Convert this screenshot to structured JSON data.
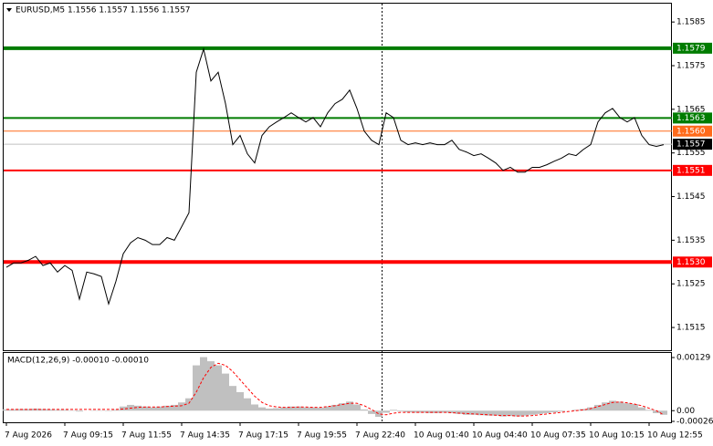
{
  "chart_data": [
    {
      "type": "line",
      "title": "EURUSD,M5  1.1556 1.1557 1.1556 1.1557",
      "color": "#000000",
      "categories": [
        "7 Aug 2026",
        null,
        null,
        null,
        null,
        null,
        null,
        null,
        "7 Aug 09:15",
        null,
        null,
        null,
        null,
        null,
        null,
        null,
        "7 Aug 11:55",
        null,
        null,
        null,
        null,
        null,
        null,
        null,
        "7 Aug 14:35",
        null,
        null,
        null,
        null,
        null,
        null,
        null,
        "7 Aug 17:15",
        null,
        null,
        null,
        null,
        null,
        null,
        null,
        "7 Aug 19:55",
        null,
        null,
        null,
        null,
        null,
        null,
        null,
        "7 Aug 22:40",
        null,
        null,
        null,
        null,
        null,
        null,
        null,
        "10 Aug 01:40",
        null,
        null,
        null,
        null,
        null,
        null,
        null,
        "10 Aug 04:40",
        null,
        null,
        null,
        null,
        null,
        null,
        null,
        "10 Aug 07:35",
        null,
        null,
        null,
        null,
        null,
        null,
        null,
        "10 Aug 10:15",
        null,
        null,
        null,
        null,
        null,
        null,
        null,
        "10 Aug 12:55",
        null,
        null
      ],
      "values": [
        1.15288,
        1.15298,
        1.15298,
        1.15304,
        1.15313,
        1.15292,
        1.15298,
        1.15277,
        1.15292,
        1.15281,
        1.15215,
        1.15277,
        1.15273,
        1.15267,
        1.15204,
        1.15256,
        1.15319,
        1.15344,
        1.15356,
        1.1535,
        1.1534,
        1.1534,
        1.15356,
        1.1535,
        1.15381,
        1.15413,
        1.15735,
        1.15788,
        1.15715,
        1.15735,
        1.15663,
        1.15569,
        1.1559,
        1.15548,
        1.15527,
        1.1559,
        1.1561,
        1.15621,
        1.15631,
        1.15642,
        1.15631,
        1.15621,
        1.15631,
        1.1561,
        1.15642,
        1.15663,
        1.15673,
        1.15694,
        1.15652,
        1.156,
        1.15579,
        1.15569,
        1.15642,
        1.15631,
        1.15579,
        1.15569,
        1.15573,
        1.15569,
        1.15573,
        1.15569,
        1.15569,
        1.15579,
        1.15558,
        1.15552,
        1.15544,
        1.15548,
        1.15538,
        1.15527,
        1.1551,
        1.15517,
        1.15506,
        1.15506,
        1.15517,
        1.15517,
        1.15523,
        1.15531,
        1.15538,
        1.15548,
        1.15544,
        1.15558,
        1.15569,
        1.15621,
        1.15642,
        1.15652,
        1.15631,
        1.15621,
        1.15631,
        1.1559,
        1.15569,
        1.15565,
        1.15569
      ],
      "ylim": [
        1.151,
        1.1589
      ],
      "yticks": [
        1.1515,
        1.1525,
        1.1535,
        1.1545,
        1.1555,
        1.1565,
        1.1575,
        1.1585
      ],
      "levels": [
        {
          "value": 1.1579,
          "label": "1.1579",
          "color": "#007c00",
          "weight": "heavy"
        },
        {
          "value": 1.1563,
          "label": "1.1563",
          "color": "#007c00",
          "weight": "medium"
        },
        {
          "value": 1.156,
          "label": "1.1560",
          "color": "#ff6a1a",
          "weight": "thin"
        },
        {
          "value": 1.1551,
          "label": "1.1551",
          "color": "#ff0000",
          "weight": "medium"
        },
        {
          "value": 1.153,
          "label": "1.1530",
          "color": "#ff0000",
          "weight": "heavy"
        }
      ],
      "last_price": 1.1557
    },
    {
      "type": "macd",
      "title": "MACD(12,26,9) -0.00010 -0.00010",
      "ylim": [
        -0.00026,
        0.00129
      ],
      "yticks": [
        0.00129,
        {
          "value": 0,
          "label": "0.00"
        },
        -0.00026
      ],
      "series": [
        {
          "type": "bar",
          "color": "#c0c0c0",
          "values": [
            3e-05,
            3e-05,
            4e-05,
            4e-05,
            5e-05,
            4e-05,
            3e-05,
            2e-05,
            2e-05,
            1e-05,
            -2e-05,
            0,
            1e-05,
            1e-05,
            -1e-05,
            2e-05,
            0.0001,
            0.00014,
            0.00012,
            0.0001,
            8e-05,
            0.0001,
            0.00012,
            0.00014,
            0.0002,
            0.0003,
            0.0011,
            0.0013,
            0.0012,
            0.0011,
            0.0009,
            0.0006,
            0.00045,
            0.0003,
            0.00015,
            8e-05,
            5e-05,
            6e-05,
            8e-05,
            0.0001,
            0.0001,
            8e-05,
            8e-05,
            7e-05,
            0.0001,
            0.00014,
            0.00018,
            0.00022,
            0.00015,
            3e-05,
            -8e-05,
            -0.00015,
            -5e-05,
            2e-05,
            -2e-05,
            -4e-05,
            -5e-05,
            -5e-05,
            -6e-05,
            -6e-05,
            -5e-05,
            -6e-05,
            -8e-05,
            -0.0001,
            -0.0001,
            -0.00011,
            -0.00012,
            -0.00012,
            -0.00014,
            -0.00013,
            -0.00014,
            -0.00012,
            -0.0001,
            -8e-05,
            -6e-05,
            -4e-05,
            -2e-05,
            0,
            2e-05,
            4e-05,
            8e-05,
            0.00014,
            0.0002,
            0.00024,
            0.00022,
            0.00018,
            0.00016,
            8e-05,
            2e-05,
            -6e-05,
            -0.0001
          ]
        },
        {
          "type": "line",
          "color": "#ff0000",
          "dash": true,
          "values": [
            3e-05,
            3e-05,
            3e-05,
            3e-05,
            3e-05,
            3e-05,
            3e-05,
            3e-05,
            3e-05,
            3e-05,
            3e-05,
            3e-05,
            3e-05,
            3e-05,
            3e-05,
            3e-05,
            4e-05,
            6e-05,
            8e-05,
            9e-05,
            9e-05,
            9e-05,
            0.0001,
            0.00011,
            0.00012,
            0.00018,
            0.00045,
            0.0008,
            0.00105,
            0.00115,
            0.0011,
            0.00095,
            0.00075,
            0.00055,
            0.00035,
            0.0002,
            0.00012,
            9e-05,
            8e-05,
            8e-05,
            9e-05,
            9e-05,
            8e-05,
            8e-05,
            0.0001,
            0.00012,
            0.00015,
            0.00018,
            0.00018,
            0.00012,
            3e-05,
            -8e-05,
            -0.0001,
            -6e-05,
            -4e-05,
            -4e-05,
            -4e-05,
            -4e-05,
            -4e-05,
            -4e-05,
            -4e-05,
            -5e-05,
            -6e-05,
            -7e-05,
            -8e-05,
            -9e-05,
            -0.0001,
            -0.00011,
            -0.00012,
            -0.00012,
            -0.00013,
            -0.00013,
            -0.00012,
            -0.0001,
            -8e-05,
            -6e-05,
            -4e-05,
            -2e-05,
            0,
            2e-05,
            5e-05,
            0.0001,
            0.00015,
            0.0002,
            0.00021,
            0.00019,
            0.00016,
            0.00012,
            6e-05,
            0,
            -0.0001
          ]
        }
      ]
    }
  ]
}
